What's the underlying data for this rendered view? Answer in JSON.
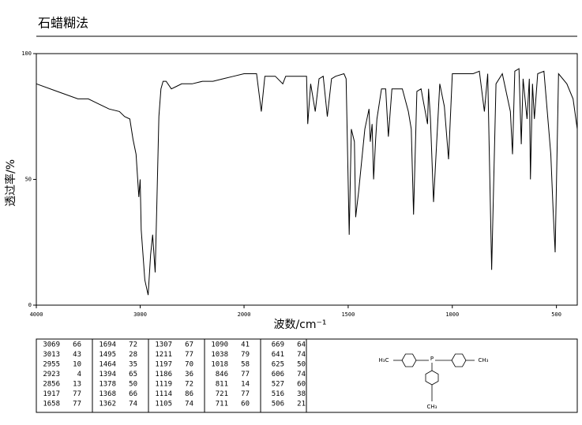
{
  "chart_data": {
    "type": "line",
    "title": "石蜡糊法",
    "x_label": "波数/cm⁻¹",
    "y_label": "透过率/%",
    "xlim": [
      4000,
      400
    ],
    "x_scale_break": 2000,
    "xticks": [
      4000,
      3000,
      2000,
      1500,
      1000,
      500
    ],
    "ylim": [
      0,
      100
    ],
    "yticks": [
      0,
      50,
      100
    ],
    "color": "#000000",
    "x": [
      4000,
      3800,
      3600,
      3500,
      3400,
      3300,
      3200,
      3150,
      3100,
      3069,
      3040,
      3013,
      3000,
      2990,
      2955,
      2923,
      2900,
      2880,
      2856,
      2840,
      2820,
      2800,
      2780,
      2750,
      2700,
      2650,
      2600,
      2500,
      2400,
      2300,
      2200,
      2100,
      2000,
      1940,
      1917,
      1900,
      1850,
      1814,
      1800,
      1750,
      1700,
      1694,
      1680,
      1658,
      1640,
      1620,
      1600,
      1580,
      1560,
      1520,
      1510,
      1495,
      1485,
      1470,
      1464,
      1450,
      1420,
      1400,
      1394,
      1385,
      1378,
      1368,
      1362,
      1340,
      1320,
      1307,
      1290,
      1260,
      1240,
      1211,
      1197,
      1186,
      1170,
      1150,
      1119,
      1114,
      1105,
      1090,
      1060,
      1038,
      1018,
      1000,
      950,
      900,
      870,
      846,
      830,
      811,
      790,
      760,
      721,
      711,
      700,
      680,
      669,
      660,
      641,
      630,
      625,
      615,
      606,
      590,
      560,
      527,
      516,
      506,
      490,
      450,
      420,
      400
    ],
    "values": [
      88,
      85,
      82,
      82,
      80,
      78,
      77,
      75,
      74,
      66,
      60,
      43,
      50,
      30,
      10,
      4,
      20,
      28,
      13,
      40,
      75,
      86,
      89,
      89,
      86,
      87,
      88,
      88,
      89,
      89,
      90,
      91,
      92,
      92,
      77,
      91,
      91,
      88,
      91,
      91,
      91,
      72,
      88,
      77,
      90,
      91,
      75,
      90,
      91,
      92,
      90,
      28,
      70,
      65,
      35,
      45,
      70,
      78,
      65,
      72,
      50,
      66,
      74,
      86,
      86,
      67,
      86,
      86,
      86,
      77,
      70,
      36,
      85,
      86,
      72,
      86,
      74,
      41,
      88,
      79,
      58,
      92,
      92,
      92,
      93,
      77,
      92,
      14,
      88,
      92,
      77,
      60,
      93,
      94,
      64,
      90,
      74,
      90,
      50,
      88,
      74,
      92,
      93,
      60,
      38,
      21,
      92,
      88,
      82,
      70
    ]
  },
  "peak_table": {
    "columns": [
      [
        [
          "3069",
          "66"
        ],
        [
          "3013",
          "43"
        ],
        [
          "2955",
          "10"
        ],
        [
          "2923",
          "4"
        ],
        [
          "2856",
          "13"
        ],
        [
          "1917",
          "77"
        ],
        [
          "1658",
          "77"
        ]
      ],
      [
        [
          "1694",
          "72"
        ],
        [
          "1495",
          "28"
        ],
        [
          "1464",
          "35"
        ],
        [
          "1394",
          "65"
        ],
        [
          "1378",
          "50"
        ],
        [
          "1368",
          "66"
        ],
        [
          "1362",
          "74"
        ]
      ],
      [
        [
          "1307",
          "67"
        ],
        [
          "1211",
          "77"
        ],
        [
          "1197",
          "70"
        ],
        [
          "1186",
          "36"
        ],
        [
          "1119",
          "72"
        ],
        [
          "1114",
          "86"
        ],
        [
          "1105",
          "74"
        ]
      ],
      [
        [
          "1090",
          "41"
        ],
        [
          "1038",
          "79"
        ],
        [
          "1018",
          "58"
        ],
        [
          "846",
          "77"
        ],
        [
          "811",
          "14"
        ],
        [
          "721",
          "77"
        ],
        [
          "711",
          "60"
        ]
      ],
      [
        [
          "669",
          "64"
        ],
        [
          "641",
          "74"
        ],
        [
          "625",
          "50"
        ],
        [
          "606",
          "74"
        ],
        [
          "527",
          "60"
        ],
        [
          "516",
          "38"
        ],
        [
          "506",
          "21"
        ]
      ]
    ]
  },
  "structure": {
    "labels": [
      "H₃C",
      "P",
      "CH₃",
      "CH₃"
    ]
  }
}
